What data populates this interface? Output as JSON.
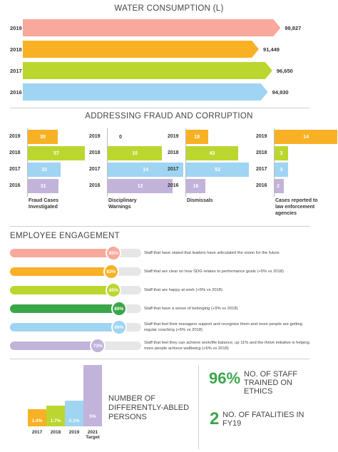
{
  "water": {
    "title": "WATER CONSUMPTION (L)",
    "rows": [
      {
        "year": "2019",
        "value": 99827,
        "label": "99,827",
        "color": "#f9a99b"
      },
      {
        "year": "2018",
        "value": 91449,
        "label": "91,449",
        "color": "#f8b125"
      },
      {
        "year": "2017",
        "value": 96650,
        "label": "96,650",
        "color": "#bcd630"
      },
      {
        "year": "2016",
        "value": 94930,
        "label": "94,930",
        "color": "#9fd4f2"
      }
    ]
  },
  "fraud": {
    "title": "ADDRESSING FRAUD AND CORRUPTION",
    "years": [
      "2019",
      "2018",
      "2017",
      "2016"
    ],
    "colors": [
      "#f8b125",
      "#bcd630",
      "#9fd4f2",
      "#c2b3da"
    ],
    "groups": [
      {
        "label": "Fraud Cases Investigated",
        "values": [
          30,
          57,
          33,
          31
        ],
        "labels": [
          "30",
          "57",
          "33",
          "31"
        ]
      },
      {
        "label": "Disciplinary Warnings",
        "values": [
          0,
          10,
          14,
          12
        ],
        "labels": [
          "0",
          "10",
          "14",
          "12"
        ]
      },
      {
        "label": "Dismissals",
        "values": [
          18,
          43,
          52,
          16
        ],
        "labels": [
          "18",
          "43",
          "52",
          "16"
        ]
      },
      {
        "label": "Cases reported to law enforcement agencies",
        "values": [
          14,
          3,
          3,
          2
        ],
        "labels": [
          "14",
          "3",
          "3",
          "2"
        ]
      }
    ]
  },
  "engagement": {
    "title": "EMPLOYEE ENGAGEMENT",
    "items": [
      {
        "value": 85,
        "label": "85%",
        "color": "#f9a99b",
        "text": "Staff that have stated that leaders have articulated the vision for the future"
      },
      {
        "value": 83,
        "label": "83%",
        "color": "#f8b125",
        "text": "Staff that are clear on how SDG relates to performance goals (+5% vs 2018)"
      },
      {
        "value": 85,
        "label": "85%",
        "color": "#bcd630",
        "text": "Staff that are happy at work (+5% vs 2018)"
      },
      {
        "value": 89,
        "label": "89%",
        "color": "#3aa64a",
        "text": "Staff that have a sense of belonging (+5% vs 2018)"
      },
      {
        "value": 89,
        "label": "89%",
        "color": "#9fd4f2",
        "text": "Staff that feel their managers support and recognise them and more people are getting regular coaching (+5% vs 2018)"
      },
      {
        "value": 73,
        "label": "73%",
        "color": "#c2b3da",
        "text": "Staff that feel they can achieve work/life balance, up 11% and the thrive initiative is helping more people achieve wellbeing (+6% vs 2018)"
      }
    ]
  },
  "abled": {
    "title": "NUMBER OF DIFFERENTLY-ABLED PERSONS",
    "bars": [
      {
        "year": "2017",
        "value": 1.4,
        "label": "1.4%",
        "color": "#f8b125"
      },
      {
        "year": "2018",
        "value": 1.7,
        "label": "1.7%",
        "color": "#bcd630"
      },
      {
        "year": "2019",
        "value": 2.1,
        "label": "2.1%",
        "color": "#9fd4f2"
      },
      {
        "year": "2021 Target",
        "value": 5,
        "label": "5%",
        "color": "#c2b3da"
      }
    ]
  },
  "kpis": [
    {
      "number": "96%",
      "text": "NO. OF STAFF TRAINED ON ETHICS"
    },
    {
      "number": "2",
      "text": "NO. OF FATALITIES IN FY19"
    }
  ],
  "chart_data": [
    {
      "type": "bar",
      "title": "WATER CONSUMPTION (L)",
      "categories": [
        "2019",
        "2018",
        "2017",
        "2016"
      ],
      "values": [
        99827,
        91449,
        96650,
        94930
      ]
    },
    {
      "type": "bar",
      "title": "ADDRESSING FRAUD AND CORRUPTION",
      "categories": [
        "2019",
        "2018",
        "2017",
        "2016"
      ],
      "series": [
        {
          "name": "Fraud Cases Investigated",
          "values": [
            30,
            57,
            33,
            31
          ]
        },
        {
          "name": "Disciplinary Warnings",
          "values": [
            0,
            10,
            14,
            12
          ]
        },
        {
          "name": "Dismissals",
          "values": [
            18,
            43,
            52,
            16
          ]
        },
        {
          "name": "Cases reported to law enforcement agencies",
          "values": [
            14,
            3,
            3,
            2
          ]
        }
      ]
    },
    {
      "type": "bar",
      "title": "EMPLOYEE ENGAGEMENT",
      "categories": [
        "Staff that have stated that leaders have articulated the vision for the future",
        "Staff that are clear on how SDG relates to performance goals (+5% vs 2018)",
        "Staff that are happy at work (+5% vs 2018)",
        "Staff that have a sense of belonging (+5% vs 2018)",
        "Staff that feel their managers support and recognise them and more people are getting regular coaching (+5% vs 2018)",
        "Staff that feel they can achieve work/life balance, up 11% and the thrive initiative is helping more people achieve wellbeing (+6% vs 2018)"
      ],
      "values": [
        85,
        83,
        85,
        89,
        89,
        73
      ]
    },
    {
      "type": "bar",
      "title": "NUMBER OF DIFFERENTLY-ABLED PERSONS",
      "categories": [
        "2017",
        "2018",
        "2019",
        "2021 Target"
      ],
      "values": [
        1.4,
        1.7,
        2.1,
        5
      ]
    }
  ]
}
